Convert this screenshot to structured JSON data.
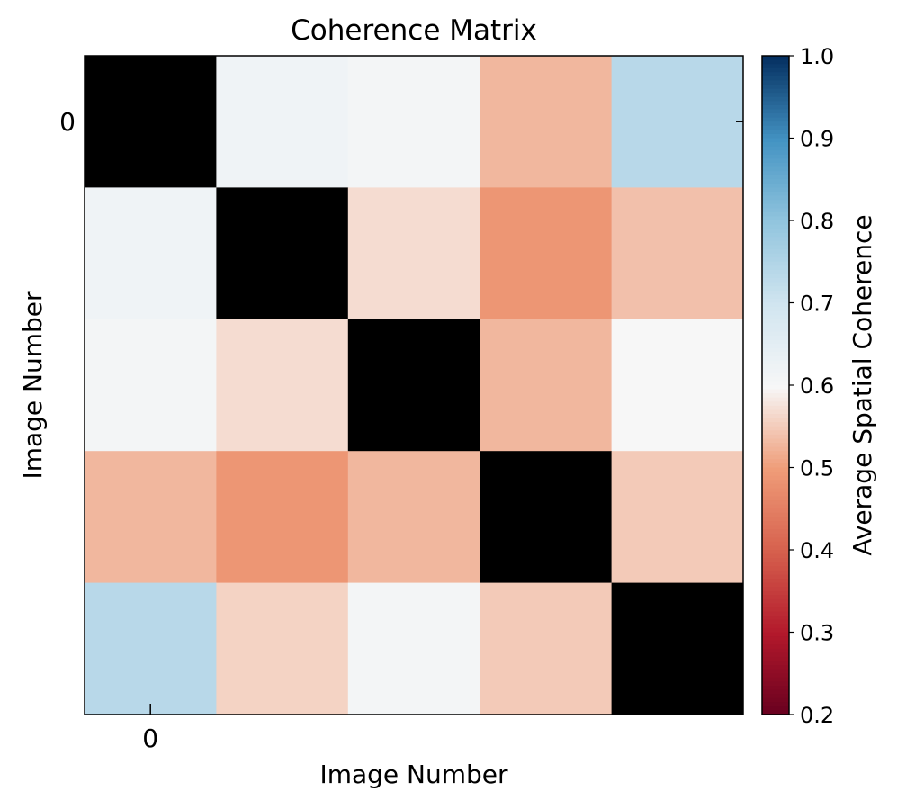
{
  "chart_data": {
    "type": "heatmap",
    "title": "Coherence Matrix",
    "xlabel": "Image Number",
    "ylabel": "Image Number",
    "x_tick_labels": [
      {
        "index": 0,
        "label": "0"
      }
    ],
    "y_tick_labels": [
      {
        "index": 0,
        "label": "0"
      }
    ],
    "rows": 5,
    "cols": 5,
    "values": [
      [
        null,
        0.62,
        0.61,
        0.53,
        0.74
      ],
      [
        0.62,
        null,
        0.57,
        0.49,
        0.54
      ],
      [
        0.61,
        0.57,
        null,
        0.53,
        0.6
      ],
      [
        0.53,
        0.49,
        0.53,
        null,
        0.55
      ],
      [
        0.74,
        0.56,
        0.61,
        0.55,
        null
      ]
    ],
    "diagonal_color": "#000000",
    "colorbar": {
      "label": "Average Spatial Coherence",
      "range": [
        0.2,
        1.0
      ],
      "ticks": [
        "1.0",
        "0.9",
        "0.8",
        "0.7",
        "0.6",
        "0.5",
        "0.4",
        "0.3",
        "0.2"
      ],
      "colormap": "RdBu"
    },
    "grid": false
  }
}
